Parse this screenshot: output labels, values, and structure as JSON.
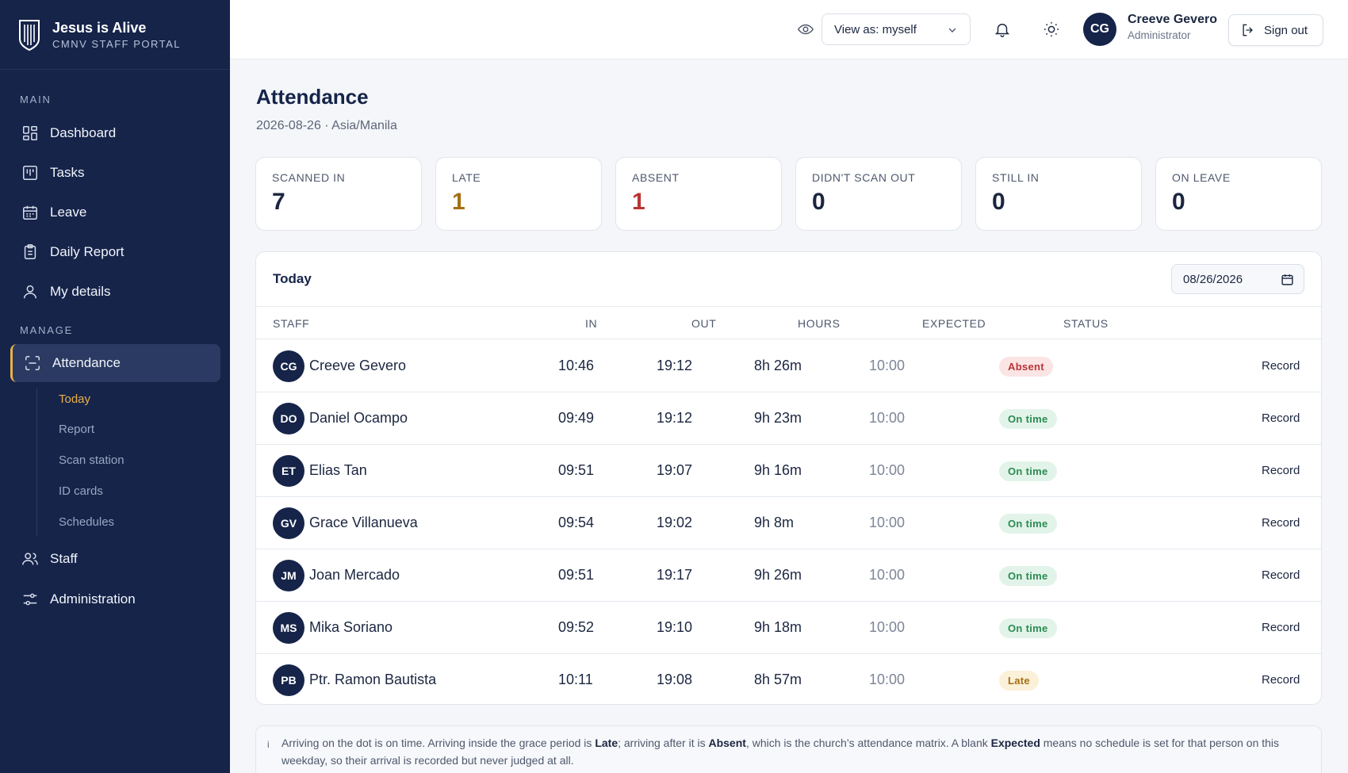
{
  "brand": {
    "name": "Jesus is Alive",
    "subtitle": "CMNV STAFF PORTAL"
  },
  "sidebar": {
    "main_label": "MAIN",
    "manage_label": "MANAGE",
    "main_items": [
      {
        "label": "Dashboard",
        "icon": "dashboard-icon"
      },
      {
        "label": "Tasks",
        "icon": "tasks-icon"
      },
      {
        "label": "Leave",
        "icon": "calendar-icon"
      },
      {
        "label": "Daily Report",
        "icon": "clipboard-icon"
      },
      {
        "label": "My details",
        "icon": "user-icon"
      }
    ],
    "attendance": {
      "label": "Attendance",
      "icon": "scan-icon"
    },
    "attendance_sub": [
      "Today",
      "Report",
      "Scan station",
      "ID cards",
      "Schedules"
    ],
    "staff": {
      "label": "Staff",
      "icon": "users-icon"
    },
    "administration": {
      "label": "Administration",
      "icon": "sliders-icon"
    }
  },
  "topbar": {
    "view_as": "View as: myself",
    "user_initials": "CG",
    "user_name": "Creeve Gevero",
    "user_role": "Administrator",
    "sign_out": "Sign out"
  },
  "page": {
    "title": "Attendance",
    "subtitle": "2026-08-26 · Asia/Manila"
  },
  "stats": [
    {
      "label": "SCANNED IN",
      "value": "7",
      "color": "#1b2640"
    },
    {
      "label": "LATE",
      "value": "1",
      "color": "#a56f14"
    },
    {
      "label": "ABSENT",
      "value": "1",
      "color": "#b93535"
    },
    {
      "label": "DIDN'T SCAN OUT",
      "value": "0",
      "color": "#1b2640"
    },
    {
      "label": "STILL IN",
      "value": "0",
      "color": "#1b2640"
    },
    {
      "label": "ON LEAVE",
      "value": "0",
      "color": "#1b2640"
    }
  ],
  "table": {
    "title": "Today",
    "date": "08/26/2026",
    "columns": [
      "STAFF",
      "IN",
      "OUT",
      "HOURS",
      "EXPECTED",
      "STATUS"
    ],
    "action_label": "Record",
    "rows": [
      {
        "initials": "CG",
        "name": "Creeve Gevero",
        "in": "10:46",
        "out": "19:12",
        "hours": "8h 26m",
        "expected": "10:00",
        "status": "Absent",
        "status_type": "absent"
      },
      {
        "initials": "DO",
        "name": "Daniel Ocampo",
        "in": "09:49",
        "out": "19:12",
        "hours": "9h 23m",
        "expected": "10:00",
        "status": "On time",
        "status_type": "ontime"
      },
      {
        "initials": "ET",
        "name": "Elias Tan",
        "in": "09:51",
        "out": "19:07",
        "hours": "9h 16m",
        "expected": "10:00",
        "status": "On time",
        "status_type": "ontime"
      },
      {
        "initials": "GV",
        "name": "Grace Villanueva",
        "in": "09:54",
        "out": "19:02",
        "hours": "9h 8m",
        "expected": "10:00",
        "status": "On time",
        "status_type": "ontime"
      },
      {
        "initials": "JM",
        "name": "Joan Mercado",
        "in": "09:51",
        "out": "19:17",
        "hours": "9h 26m",
        "expected": "10:00",
        "status": "On time",
        "status_type": "ontime"
      },
      {
        "initials": "MS",
        "name": "Mika Soriano",
        "in": "09:52",
        "out": "19:10",
        "hours": "9h 18m",
        "expected": "10:00",
        "status": "On time",
        "status_type": "ontime"
      },
      {
        "initials": "PB",
        "name": "Ptr. Ramon Bautista",
        "in": "10:11",
        "out": "19:08",
        "hours": "8h 57m",
        "expected": "10:00",
        "status": "Late",
        "status_type": "late"
      }
    ]
  },
  "note": {
    "icon": "i",
    "p1": "Arriving on the dot is on time. Arriving inside the grace period is ",
    "b1": "Late",
    "p2": "; arriving after it is ",
    "b2": "Absent",
    "p3": ", which is the church’s attendance matrix. A blank ",
    "b3": "Expected",
    "p4": " means no schedule is set for that person on this weekday, so their arrival is recorded but never judged at all."
  }
}
